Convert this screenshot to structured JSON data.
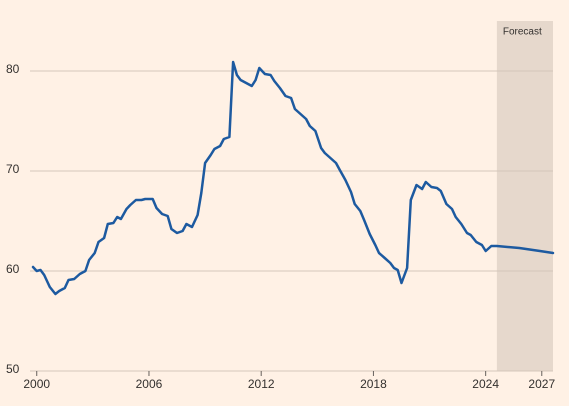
{
  "chart_data": {
    "type": "line",
    "forecast_label": "Forecast",
    "forecast_start": 2024.6,
    "forecast_color": "#e6d8cc",
    "xlim": [
      1999.8,
      2027.6
    ],
    "xticks": [
      2000,
      2006,
      2012,
      2018,
      2024,
      2027
    ],
    "ylim": [
      50,
      85
    ],
    "yticks": [
      50,
      60,
      70,
      80
    ],
    "grid": true,
    "series": [
      {
        "color": "#1d5aa0",
        "x": [
          1999.8,
          2000,
          2000.2,
          2000.4,
          2000.7,
          2001.0,
          2001.2,
          2001.5,
          2001.7,
          2002.0,
          2002.3,
          2002.6,
          2002.8,
          2003.1,
          2003.3,
          2003.6,
          2003.8,
          2004.1,
          2004.3,
          2004.5,
          2004.8,
          2005.0,
          2005.3,
          2005.6,
          2005.8,
          2006.2,
          2006.4,
          2006.7,
          2007.0,
          2007.2,
          2007.5,
          2007.8,
          2008.0,
          2008.3,
          2008.6,
          2008.8,
          2009.0,
          2009.3,
          2009.5,
          2009.8,
          2010.0,
          2010.3,
          2010.5,
          2010.7,
          2010.9,
          2011.2,
          2011.5,
          2011.7,
          2011.9,
          2012.2,
          2012.5,
          2012.7,
          2013.0,
          2013.3,
          2013.6,
          2013.8,
          2014.1,
          2014.4,
          2014.6,
          2014.9,
          2015.2,
          2015.4,
          2015.7,
          2016.0,
          2016.2,
          2016.5,
          2016.8,
          2017.0,
          2017.3,
          2017.5,
          2017.8,
          2018.1,
          2018.3,
          2018.6,
          2018.9,
          2019.1,
          2019.3,
          2019.5,
          2019.8,
          2020.0,
          2020.3,
          2020.6,
          2020.8,
          2021.1,
          2021.4,
          2021.6,
          2021.9,
          2022.2,
          2022.4,
          2022.7,
          2023.0,
          2023.2,
          2023.5,
          2023.8,
          2024.0,
          2024.3,
          2024.6,
          2025.8,
          2026.9,
          2027.6
        ],
        "values": [
          60.4,
          60.0,
          60.1,
          59.6,
          58.4,
          57.7,
          58.0,
          58.3,
          59.1,
          59.2,
          59.7,
          60.0,
          61.1,
          61.8,
          62.9,
          63.3,
          64.7,
          64.8,
          65.4,
          65.2,
          66.2,
          66.6,
          67.1,
          67.1,
          67.2,
          67.2,
          66.3,
          65.7,
          65.5,
          64.2,
          63.8,
          64.0,
          64.7,
          64.4,
          65.6,
          67.8,
          70.8,
          71.6,
          72.2,
          72.5,
          73.2,
          73.4,
          80.9,
          79.6,
          79.1,
          78.8,
          78.5,
          79.1,
          80.3,
          79.7,
          79.6,
          79.0,
          78.3,
          77.5,
          77.3,
          76.2,
          75.7,
          75.2,
          74.5,
          74.0,
          72.3,
          71.8,
          71.3,
          70.8,
          70.1,
          69.1,
          67.9,
          66.7,
          66.0,
          65.1,
          63.7,
          62.6,
          61.8,
          61.3,
          60.8,
          60.3,
          60.1,
          58.8,
          60.3,
          67.1,
          68.6,
          68.2,
          68.9,
          68.4,
          68.3,
          68.0,
          66.7,
          66.2,
          65.4,
          64.7,
          63.8,
          63.6,
          62.9,
          62.6,
          62.0,
          62.5,
          62.5,
          62.3,
          62.0,
          61.8
        ]
      }
    ]
  }
}
